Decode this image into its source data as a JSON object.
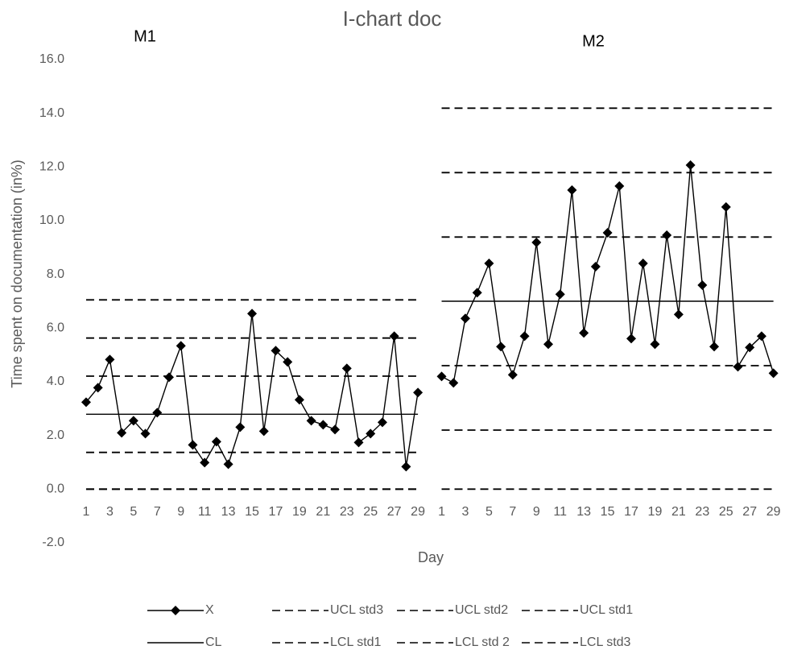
{
  "chart_data": {
    "type": "line",
    "title": "I-chart doc",
    "y_label": "Time spent on documentation (in%)",
    "x_label": "Day",
    "annotations": [
      "M1",
      "M2"
    ],
    "categories": [
      "1",
      null,
      "3",
      null,
      "5",
      null,
      "7",
      null,
      "9",
      null,
      "11",
      null,
      "13",
      null,
      "15",
      null,
      "17",
      null,
      "19",
      null,
      "21",
      null,
      "23",
      null,
      "25",
      null,
      "27",
      null,
      "29",
      null,
      "1",
      null,
      "3",
      null,
      "5",
      null,
      "7",
      null,
      "9",
      null,
      "11",
      null,
      "13",
      null,
      "15",
      null,
      "17",
      null,
      "19",
      null,
      "21",
      null,
      "23",
      null,
      "25",
      null,
      "27",
      null,
      "29"
    ],
    "ylim": [
      -2,
      16
    ],
    "yticks": [
      {
        "value": -2,
        "label": "-2.0"
      },
      {
        "value": 0,
        "label": "0.0"
      },
      {
        "value": 2,
        "label": "2.0"
      },
      {
        "value": 4,
        "label": "4.0"
      },
      {
        "value": 6,
        "label": "6.0"
      },
      {
        "value": 8,
        "label": "8.0"
      },
      {
        "value": 10,
        "label": "10.0"
      },
      {
        "value": 12,
        "label": "12.0"
      },
      {
        "value": 14,
        "label": "14.0"
      },
      {
        "value": 16,
        "label": "16.0"
      }
    ],
    "grid": false,
    "legend": "bottom",
    "series": [
      {
        "name": "X",
        "color": "#000000",
        "line_style": "solid",
        "marker": "diamond",
        "values": [
          3.24,
          3.78,
          4.83,
          2.1,
          2.55,
          2.07,
          2.85,
          4.17,
          5.34,
          1.65,
          0.99,
          1.77,
          0.93,
          2.31,
          6.54,
          2.16,
          5.16,
          4.74,
          3.33,
          2.55,
          2.4,
          2.22,
          4.5,
          1.74,
          2.07,
          2.49,
          5.7,
          0.84,
          3.6,
          null,
          4.2,
          3.96,
          6.36,
          7.32,
          8.41,
          5.31,
          4.26,
          5.7,
          9.19,
          5.4,
          7.26,
          11.14,
          5.82,
          8.29,
          9.55,
          11.29,
          5.61,
          8.41,
          5.4,
          9.46,
          6.51,
          12.07,
          7.6,
          5.31,
          10.51,
          4.56,
          5.28,
          5.7,
          4.32
        ]
      },
      {
        "name": "UCL std3",
        "color": "#000000",
        "line_style": "dashed",
        "values": [
          7.05,
          7.05,
          7.05,
          7.05,
          7.05,
          7.05,
          7.05,
          7.05,
          7.05,
          7.05,
          7.05,
          7.05,
          7.05,
          7.05,
          7.05,
          7.05,
          7.05,
          7.05,
          7.05,
          7.05,
          7.05,
          7.05,
          7.05,
          7.05,
          7.05,
          7.05,
          7.05,
          7.05,
          7.05,
          null,
          14.19,
          14.19,
          14.19,
          14.19,
          14.19,
          14.19,
          14.19,
          14.19,
          14.19,
          14.19,
          14.19,
          14.19,
          14.19,
          14.19,
          14.19,
          14.19,
          14.19,
          14.19,
          14.19,
          14.19,
          14.19,
          14.19,
          14.19,
          14.19,
          14.19,
          14.19,
          14.19,
          14.19,
          14.19
        ]
      },
      {
        "name": "UCL std2",
        "color": "#000000",
        "line_style": "dashed",
        "values": [
          5.63,
          5.63,
          5.63,
          5.63,
          5.63,
          5.63,
          5.63,
          5.63,
          5.63,
          5.63,
          5.63,
          5.63,
          5.63,
          5.63,
          5.63,
          5.63,
          5.63,
          5.63,
          5.63,
          5.63,
          5.63,
          5.63,
          5.63,
          5.63,
          5.63,
          5.63,
          5.63,
          5.63,
          5.63,
          null,
          11.79,
          11.79,
          11.79,
          11.79,
          11.79,
          11.79,
          11.79,
          11.79,
          11.79,
          11.79,
          11.79,
          11.79,
          11.79,
          11.79,
          11.79,
          11.79,
          11.79,
          11.79,
          11.79,
          11.79,
          11.79,
          11.79,
          11.79,
          11.79,
          11.79,
          11.79,
          11.79,
          11.79,
          11.79
        ]
      },
      {
        "name": "UCL std1",
        "color": "#000000",
        "line_style": "dashed",
        "values": [
          4.21,
          4.21,
          4.21,
          4.21,
          4.21,
          4.21,
          4.21,
          4.21,
          4.21,
          4.21,
          4.21,
          4.21,
          4.21,
          4.21,
          4.21,
          4.21,
          4.21,
          4.21,
          4.21,
          4.21,
          4.21,
          4.21,
          4.21,
          4.21,
          4.21,
          4.21,
          4.21,
          4.21,
          4.21,
          null,
          9.39,
          9.39,
          9.39,
          9.39,
          9.39,
          9.39,
          9.39,
          9.39,
          9.39,
          9.39,
          9.39,
          9.39,
          9.39,
          9.39,
          9.39,
          9.39,
          9.39,
          9.39,
          9.39,
          9.39,
          9.39,
          9.39,
          9.39,
          9.39,
          9.39,
          9.39,
          9.39,
          9.39,
          9.39
        ]
      },
      {
        "name": "CL",
        "color": "#000000",
        "line_style": "solid",
        "values": [
          2.79,
          2.79,
          2.79,
          2.79,
          2.79,
          2.79,
          2.79,
          2.79,
          2.79,
          2.79,
          2.79,
          2.79,
          2.79,
          2.79,
          2.79,
          2.79,
          2.79,
          2.79,
          2.79,
          2.79,
          2.79,
          2.79,
          2.79,
          2.79,
          2.79,
          2.79,
          2.79,
          2.79,
          2.79,
          null,
          7.0,
          7.0,
          7.0,
          7.0,
          7.0,
          7.0,
          7.0,
          7.0,
          7.0,
          7.0,
          7.0,
          7.0,
          7.0,
          7.0,
          7.0,
          7.0,
          7.0,
          7.0,
          7.0,
          7.0,
          7.0,
          7.0,
          7.0,
          7.0,
          7.0,
          7.0,
          7.0,
          7.0,
          7.0
        ]
      },
      {
        "name": "LCL std1",
        "color": "#000000",
        "line_style": "dashed",
        "values": [
          1.37,
          1.37,
          1.37,
          1.37,
          1.37,
          1.37,
          1.37,
          1.37,
          1.37,
          1.37,
          1.37,
          1.37,
          1.37,
          1.37,
          1.37,
          1.37,
          1.37,
          1.37,
          1.37,
          1.37,
          1.37,
          1.37,
          1.37,
          1.37,
          1.37,
          1.37,
          1.37,
          1.37,
          1.37,
          null,
          4.6,
          4.6,
          4.6,
          4.6,
          4.6,
          4.6,
          4.6,
          4.6,
          4.6,
          4.6,
          4.6,
          4.6,
          4.6,
          4.6,
          4.6,
          4.6,
          4.6,
          4.6,
          4.6,
          4.6,
          4.6,
          4.6,
          4.6,
          4.6,
          4.6,
          4.6,
          4.6,
          4.6,
          4.6
        ]
      },
      {
        "name": "LCL std 2",
        "color": "#000000",
        "line_style": "dashed",
        "values": [
          0,
          0,
          0,
          0,
          0,
          0,
          0,
          0,
          0,
          0,
          0,
          0,
          0,
          0,
          0,
          0,
          0,
          0,
          0,
          0,
          0,
          0,
          0,
          0,
          0,
          0,
          0,
          0,
          0,
          null,
          2.2,
          2.2,
          2.2,
          2.2,
          2.2,
          2.2,
          2.2,
          2.2,
          2.2,
          2.2,
          2.2,
          2.2,
          2.2,
          2.2,
          2.2,
          2.2,
          2.2,
          2.2,
          2.2,
          2.2,
          2.2,
          2.2,
          2.2,
          2.2,
          2.2,
          2.2,
          2.2,
          2.2,
          2.2
        ]
      },
      {
        "name": "LCL std3",
        "color": "#000000",
        "line_style": "dashed",
        "values": [
          0,
          0,
          0,
          0,
          0,
          0,
          0,
          0,
          0,
          0,
          0,
          0,
          0,
          0,
          0,
          0,
          0,
          0,
          0,
          0,
          0,
          0,
          0,
          0,
          0,
          0,
          0,
          0,
          0,
          null,
          0,
          0,
          0,
          0,
          0,
          0,
          0,
          0,
          0,
          0,
          0,
          0,
          0,
          0,
          0,
          0,
          0,
          0,
          0,
          0,
          0,
          0,
          0,
          0,
          0,
          0,
          0,
          0,
          0
        ]
      }
    ]
  }
}
